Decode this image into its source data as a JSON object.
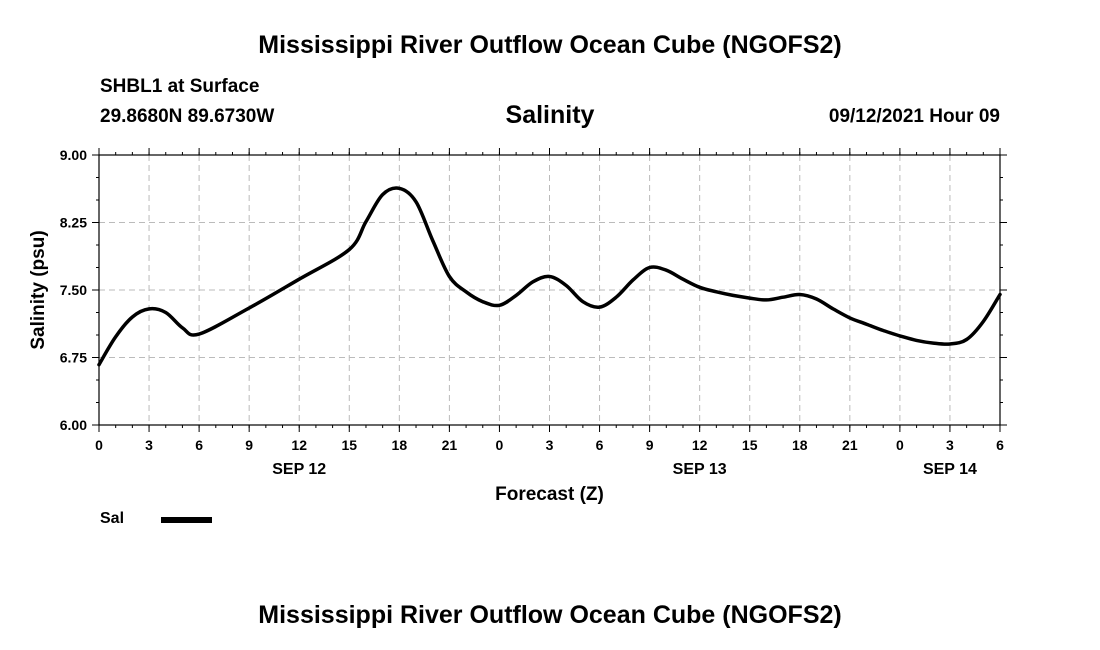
{
  "header": {
    "title": "Mississippi River Outflow Ocean Cube (NGOFS2)",
    "station": "SHBL1 at Surface",
    "coords": "29.8680N  89.6730W",
    "variable": "Salinity",
    "datetime": "09/12/2021 Hour 09"
  },
  "footer": {
    "title": "Mississippi River Outflow Ocean Cube (NGOFS2)"
  },
  "legend": {
    "label": "Sal",
    "color": "#000000"
  },
  "chart_data": {
    "type": "line",
    "title": "Salinity",
    "xlabel": "Forecast (Z)",
    "ylabel": "Salinity (psu)",
    "ylim": [
      6.0,
      9.0
    ],
    "xlim": [
      0,
      54
    ],
    "x_unit": "hours since SEP 12 00Z",
    "grid": true,
    "y_ticks": [
      6.0,
      6.75,
      7.5,
      8.25,
      9.0
    ],
    "y_tick_labels": [
      "6.00",
      "6.75",
      "7.50",
      "8.25",
      "9.00"
    ],
    "x_ticks": [
      0,
      3,
      6,
      9,
      12,
      15,
      18,
      21,
      24,
      27,
      30,
      33,
      36,
      39,
      42,
      45,
      48,
      51,
      54
    ],
    "x_tick_labels": [
      "0",
      "3",
      "6",
      "9",
      "12",
      "15",
      "18",
      "21",
      "0",
      "3",
      "6",
      "9",
      "12",
      "15",
      "18",
      "21",
      "0",
      "3",
      "6"
    ],
    "date_labels": [
      {
        "x": 12,
        "label": "SEP 12"
      },
      {
        "x": 36,
        "label": "SEP 13"
      },
      {
        "x": 51,
        "label": "SEP 14"
      }
    ],
    "series": [
      {
        "name": "Sal",
        "color": "#000000",
        "x": [
          0,
          1,
          2,
          3,
          4,
          5,
          6,
          9,
          12,
          15,
          16,
          17,
          18,
          19,
          20,
          21,
          22,
          23,
          24,
          25,
          26,
          27,
          28,
          29,
          30,
          31,
          32,
          33,
          34,
          35,
          36,
          37,
          38,
          39,
          40,
          41,
          42,
          43,
          44,
          45,
          46,
          47,
          48,
          49,
          50,
          51,
          52,
          53,
          54
        ],
        "values": [
          6.67,
          6.98,
          7.2,
          7.29,
          7.25,
          7.08,
          7.01,
          7.3,
          7.62,
          7.95,
          8.26,
          8.56,
          8.63,
          8.48,
          8.05,
          7.65,
          7.48,
          7.37,
          7.33,
          7.44,
          7.59,
          7.65,
          7.55,
          7.37,
          7.31,
          7.42,
          7.61,
          7.75,
          7.72,
          7.62,
          7.53,
          7.48,
          7.44,
          7.41,
          7.39,
          7.42,
          7.45,
          7.4,
          7.29,
          7.19,
          7.12,
          7.05,
          6.99,
          6.94,
          6.91,
          6.9,
          6.95,
          7.15,
          7.45
        ]
      }
    ]
  }
}
